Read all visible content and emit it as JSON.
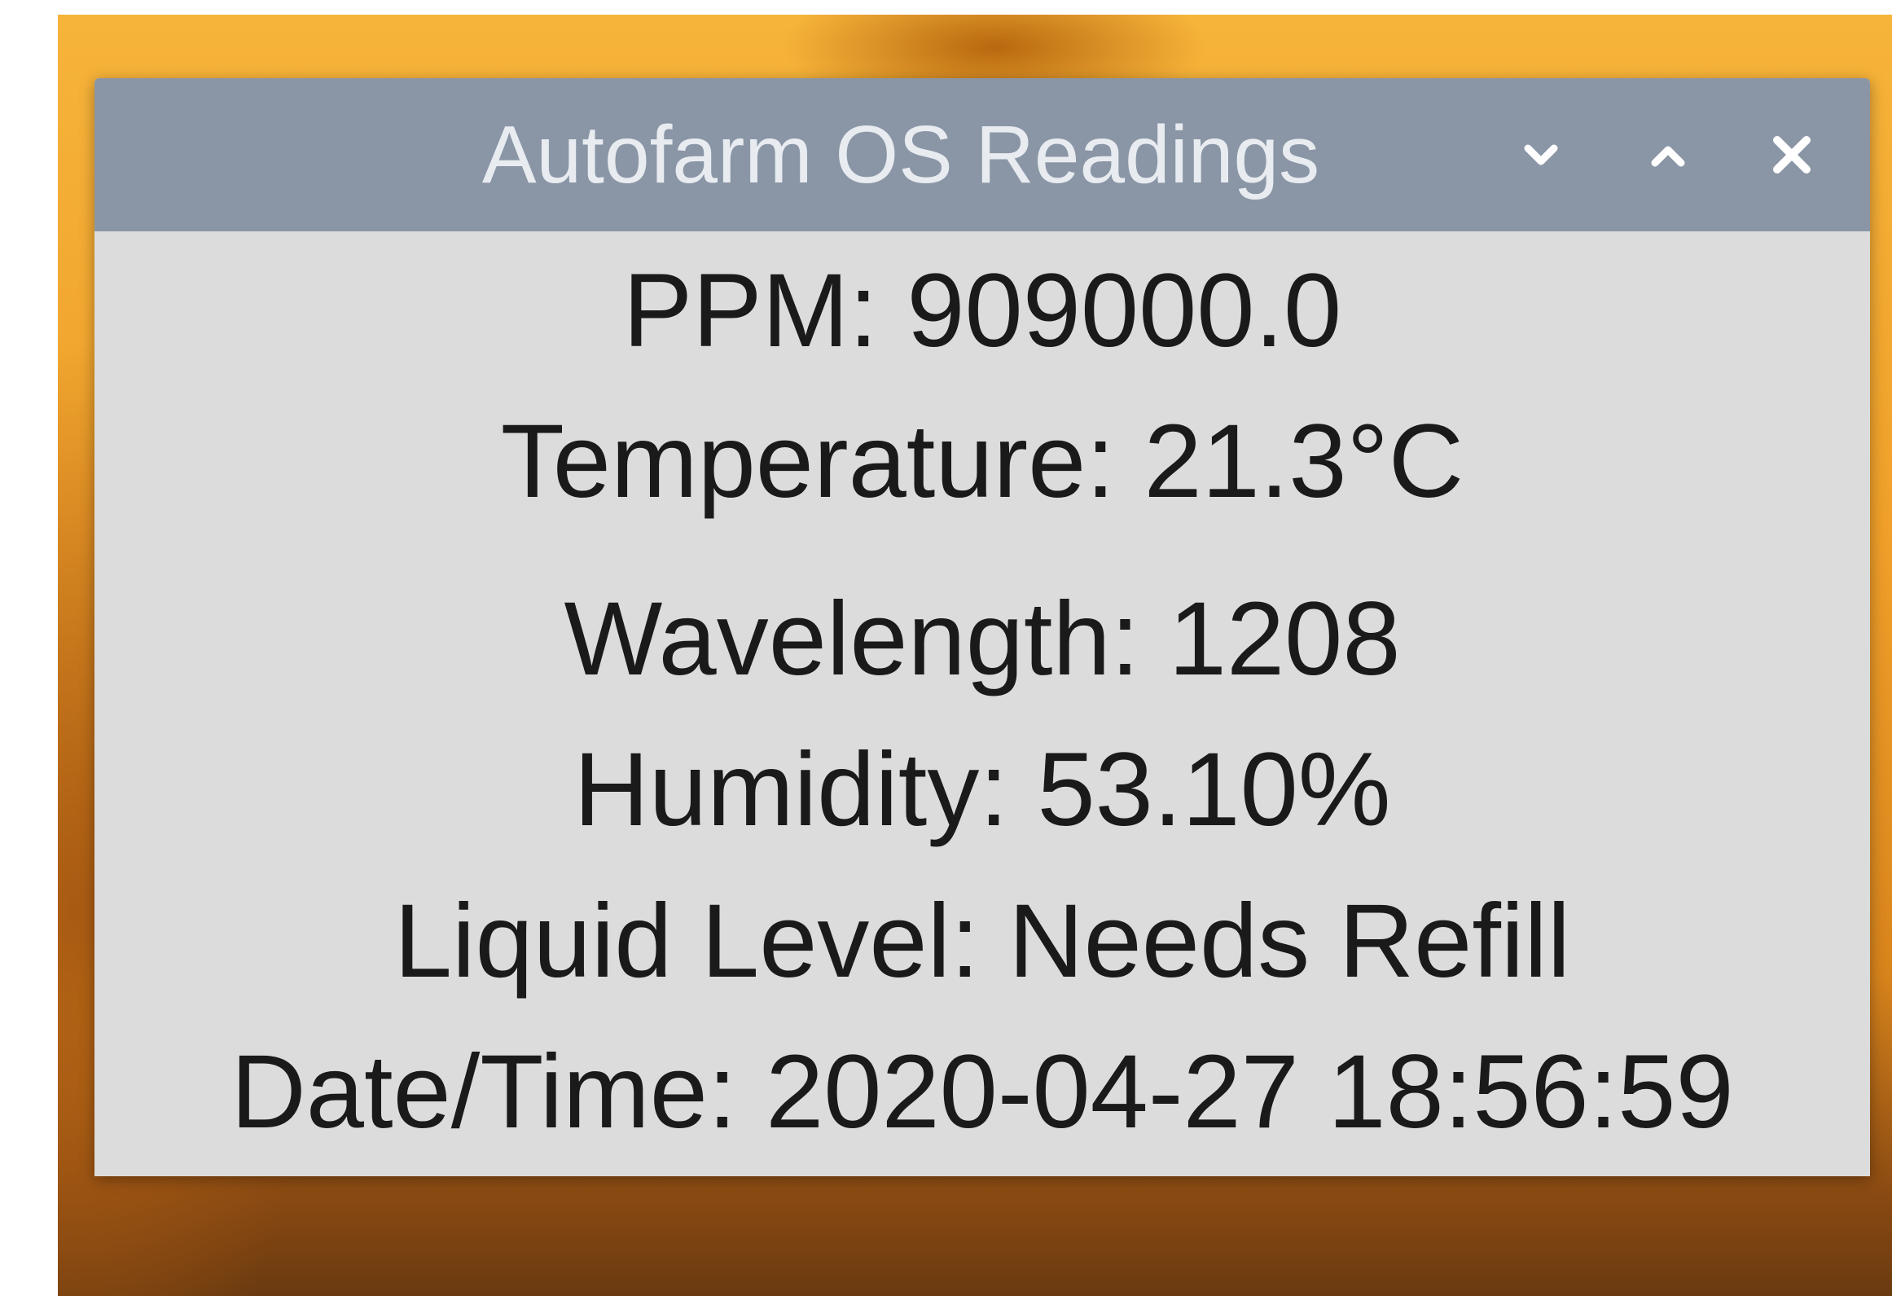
{
  "window": {
    "title": "Autofarm OS Readings",
    "readings": [
      "PPM: 909000.0",
      "Temperature: 21.3°C",
      "Wavelength: 1208",
      "Humidity: 53.10%",
      "Liquid Level: Needs Refill",
      "Date/Time: 2020-04-27 18:56:59"
    ]
  }
}
